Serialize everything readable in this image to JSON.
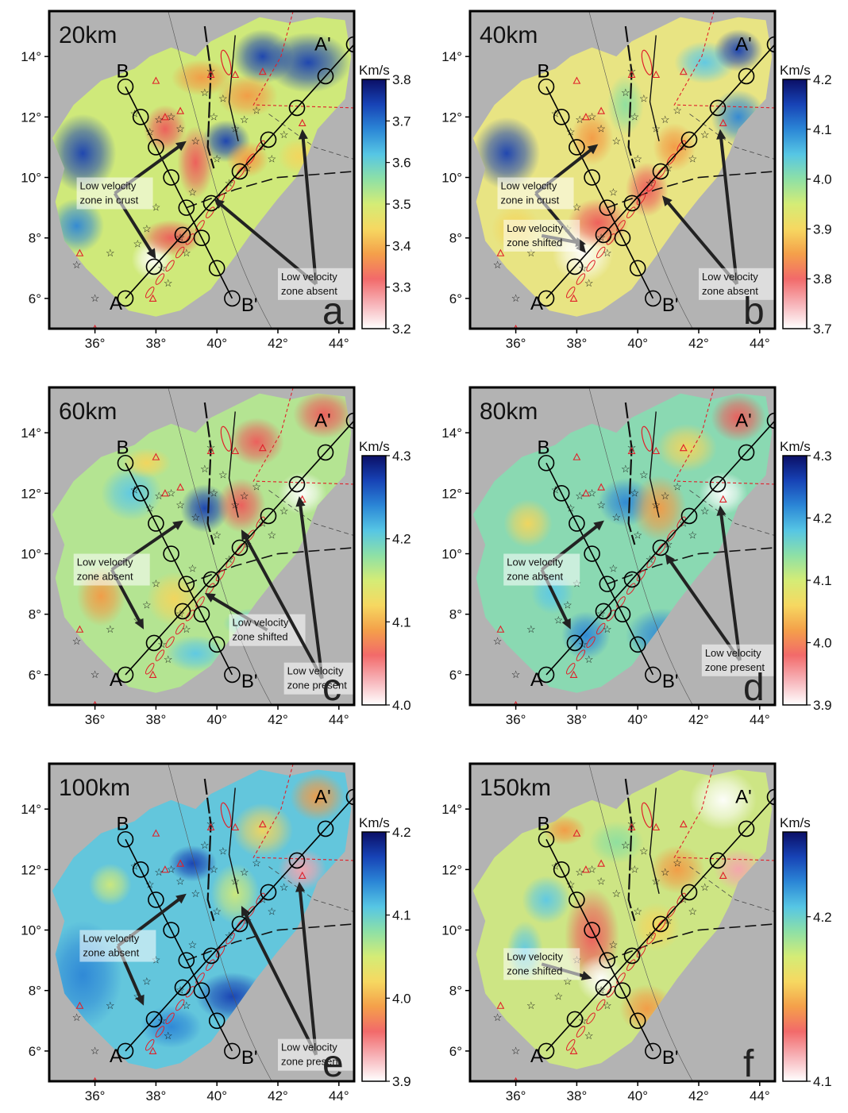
{
  "colors": {
    "land": "#b3b3b3",
    "scale_stops": [
      "#ffffff",
      "#f7b3b8",
      "#f26a6a",
      "#f4a04a",
      "#f6d861",
      "#d4ec76",
      "#8ee0a6",
      "#56c6e4",
      "#2b86d6",
      "#1743b6",
      "#0b0f66"
    ],
    "volcano": "#e0202a",
    "star": "#111111",
    "arrow": "#222222"
  },
  "map": {
    "x_ticks": [
      "36°",
      "38°",
      "40°",
      "42°",
      "44°"
    ],
    "y_ticks": [
      "6°",
      "8°",
      "10°",
      "12°",
      "14°"
    ],
    "profile_labels": {
      "a_start": "A",
      "a_end": "A'",
      "b_start": "B",
      "b_end": "B'"
    },
    "colorbar_unit": "Km/s"
  },
  "panels": [
    {
      "depth": "20km",
      "letter": "a",
      "colorbar_ticks": [
        "3.8",
        "3.7",
        "3.6",
        "3.5",
        "3.4",
        "3.3",
        "3.2"
      ],
      "annotations": [
        {
          "lines": [
            "Low velocity",
            "zone in crust"
          ]
        },
        {
          "lines": [
            "Low velocity",
            "zone absent"
          ]
        }
      ]
    },
    {
      "depth": "40km",
      "letter": "b",
      "colorbar_ticks": [
        "4.2",
        "4.1",
        "4.0",
        "3.9",
        "3.8",
        "3.7"
      ],
      "annotations": [
        {
          "lines": [
            "Low velocity",
            "zone in crust"
          ]
        },
        {
          "lines": [
            "Low velocity",
            "zone shifted"
          ]
        },
        {
          "lines": [
            "Low velocity",
            "zone absent"
          ]
        }
      ]
    },
    {
      "depth": "60km",
      "letter": "c",
      "colorbar_ticks": [
        "4.3",
        "4.2",
        "4.1",
        "4.0"
      ],
      "annotations": [
        {
          "lines": [
            "Low velocity",
            "zone absent"
          ]
        },
        {
          "lines": [
            "Low velocity",
            "zone shifted"
          ]
        },
        {
          "lines": [
            "Low velocity",
            "zone present"
          ]
        }
      ]
    },
    {
      "depth": "80km",
      "letter": "d",
      "colorbar_ticks": [
        "4.3",
        "4.2",
        "4.1",
        "4.0",
        "3.9"
      ],
      "annotations": [
        {
          "lines": [
            "Low velocity",
            "zone absent"
          ]
        },
        {
          "lines": [
            "Low velocity",
            "zone present"
          ]
        }
      ]
    },
    {
      "depth": "100km",
      "letter": "e",
      "colorbar_ticks": [
        "4.2",
        "4.1",
        "4.0",
        "3.9"
      ],
      "annotations": [
        {
          "lines": [
            "Low velocity",
            "zone absent"
          ]
        },
        {
          "lines": [
            "Low velocity",
            "zone present"
          ]
        }
      ]
    },
    {
      "depth": "150km",
      "letter": "f",
      "colorbar_ticks": [
        "4.2",
        "4.1"
      ],
      "annotations": [
        {
          "lines": [
            "Low velocity",
            "zone shifted"
          ]
        }
      ]
    }
  ]
}
